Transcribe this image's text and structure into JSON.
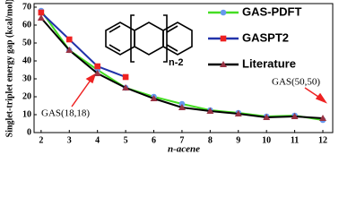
{
  "chart_data": {
    "type": "line",
    "x_label": "n-acene",
    "y_label": "Singlet-triplet energy gap (kcal/mol)",
    "x": [
      2,
      3,
      4,
      5,
      6,
      7,
      8,
      9,
      10,
      11,
      12
    ],
    "series": [
      {
        "name": "GAS-PDFT",
        "color": "#44dd22",
        "marker_color": "#6699ee",
        "marker": "circle",
        "values": [
          68,
          46,
          35,
          25,
          20,
          16,
          12.5,
          11,
          9,
          9.5,
          7
        ]
      },
      {
        "name": "GASPT2",
        "color": "#2233aa",
        "marker_color": "#ee2222",
        "marker": "square",
        "values": [
          67,
          52,
          37,
          31,
          null,
          null,
          null,
          null,
          null,
          null,
          null
        ]
      },
      {
        "name": "Literature",
        "color": "#000000",
        "marker_color": "#993344",
        "marker": "triangle",
        "values": [
          64,
          46,
          33,
          25,
          19,
          14,
          12,
          10.5,
          8.5,
          9,
          8
        ]
      }
    ],
    "xlim": [
      1.75,
      12.35
    ],
    "xticks": [
      2,
      3,
      4,
      5,
      6,
      7,
      8,
      9,
      10,
      11,
      12
    ],
    "ylim": [
      0,
      72
    ],
    "yticks": [
      0,
      10,
      20,
      30,
      40,
      50,
      60,
      70
    ],
    "annotations": [
      "GAS(18,18)",
      "GAS(50,50)",
      "n-2"
    ]
  }
}
